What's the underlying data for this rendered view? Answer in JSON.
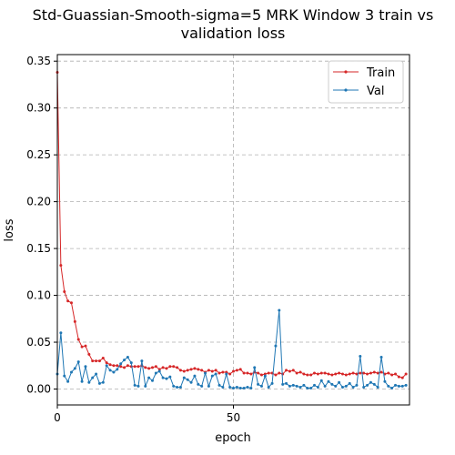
{
  "chart_data": {
    "type": "line",
    "title_lines": [
      "Std-Guassian-Smooth-sigma=5 MRK Window 3 train vs",
      "validation loss"
    ],
    "xlabel": "epoch",
    "ylabel": "loss",
    "xlim": [
      0,
      100
    ],
    "ylim": [
      -0.017,
      0.357
    ],
    "xticks": [
      0,
      50
    ],
    "yticks": [
      0.0,
      0.05,
      0.1,
      0.15,
      0.2,
      0.25,
      0.3,
      0.35
    ],
    "ytick_labels": [
      "0.00",
      "0.05",
      "0.10",
      "0.15",
      "0.20",
      "0.25",
      "0.30",
      "0.35"
    ],
    "grid": true,
    "legend_position": "top-right",
    "series": [
      {
        "name": "Train",
        "color": "#d62728",
        "x": [
          0,
          1,
          2,
          3,
          4,
          5,
          6,
          7,
          8,
          9,
          10,
          11,
          12,
          13,
          14,
          15,
          16,
          17,
          18,
          19,
          20,
          21,
          22,
          23,
          24,
          25,
          26,
          27,
          28,
          29,
          30,
          31,
          32,
          33,
          34,
          35,
          36,
          37,
          38,
          39,
          40,
          41,
          42,
          43,
          44,
          45,
          46,
          47,
          48,
          49,
          50,
          51,
          52,
          53,
          54,
          55,
          56,
          57,
          58,
          59,
          60,
          61,
          62,
          63,
          64,
          65,
          66,
          67,
          68,
          69,
          70,
          71,
          72,
          73,
          74,
          75,
          76,
          77,
          78,
          79,
          80,
          81,
          82,
          83,
          84,
          85,
          86,
          87,
          88,
          89,
          90,
          91,
          92,
          93,
          94,
          95,
          96,
          97,
          98,
          99
        ],
        "values": [
          0.338,
          0.132,
          0.104,
          0.094,
          0.092,
          0.072,
          0.053,
          0.045,
          0.046,
          0.037,
          0.03,
          0.03,
          0.03,
          0.033,
          0.028,
          0.026,
          0.025,
          0.025,
          0.024,
          0.023,
          0.025,
          0.024,
          0.024,
          0.024,
          0.025,
          0.023,
          0.022,
          0.023,
          0.024,
          0.021,
          0.023,
          0.022,
          0.024,
          0.024,
          0.023,
          0.02,
          0.019,
          0.02,
          0.021,
          0.022,
          0.021,
          0.02,
          0.018,
          0.02,
          0.019,
          0.02,
          0.017,
          0.018,
          0.018,
          0.016,
          0.019,
          0.02,
          0.021,
          0.017,
          0.017,
          0.016,
          0.018,
          0.017,
          0.015,
          0.016,
          0.017,
          0.017,
          0.015,
          0.017,
          0.016,
          0.02,
          0.019,
          0.02,
          0.017,
          0.018,
          0.016,
          0.015,
          0.015,
          0.017,
          0.016,
          0.017,
          0.017,
          0.016,
          0.015,
          0.016,
          0.017,
          0.016,
          0.015,
          0.016,
          0.017,
          0.016,
          0.017,
          0.017,
          0.016,
          0.017,
          0.018,
          0.017,
          0.018,
          0.016,
          0.017,
          0.015,
          0.016,
          0.013,
          0.012,
          0.016
        ]
      },
      {
        "name": "Val",
        "color": "#1f77b4",
        "x": [
          0,
          1,
          2,
          3,
          4,
          5,
          6,
          7,
          8,
          9,
          10,
          11,
          12,
          13,
          14,
          15,
          16,
          17,
          18,
          19,
          20,
          21,
          22,
          23,
          24,
          25,
          26,
          27,
          28,
          29,
          30,
          31,
          32,
          33,
          34,
          35,
          36,
          37,
          38,
          39,
          40,
          41,
          42,
          43,
          44,
          45,
          46,
          47,
          48,
          49,
          50,
          51,
          52,
          53,
          54,
          55,
          56,
          57,
          58,
          59,
          60,
          61,
          62,
          63,
          64,
          65,
          66,
          67,
          68,
          69,
          70,
          71,
          72,
          73,
          74,
          75,
          76,
          77,
          78,
          79,
          80,
          81,
          82,
          83,
          84,
          85,
          86,
          87,
          88,
          89,
          90,
          91,
          92,
          93,
          94,
          95,
          96,
          97,
          98,
          99
        ],
        "values": [
          0.016,
          0.06,
          0.014,
          0.008,
          0.018,
          0.022,
          0.029,
          0.008,
          0.024,
          0.007,
          0.012,
          0.016,
          0.006,
          0.007,
          0.025,
          0.02,
          0.018,
          0.021,
          0.027,
          0.031,
          0.034,
          0.028,
          0.004,
          0.003,
          0.03,
          0.003,
          0.012,
          0.009,
          0.017,
          0.019,
          0.012,
          0.011,
          0.013,
          0.003,
          0.002,
          0.002,
          0.012,
          0.01,
          0.007,
          0.014,
          0.005,
          0.003,
          0.017,
          0.003,
          0.014,
          0.016,
          0.004,
          0.002,
          0.016,
          0.002,
          0.001,
          0.002,
          0.001,
          0.001,
          0.002,
          0.001,
          0.023,
          0.005,
          0.003,
          0.014,
          0.002,
          0.006,
          0.046,
          0.084,
          0.005,
          0.006,
          0.003,
          0.004,
          0.003,
          0.002,
          0.004,
          0.001,
          0.001,
          0.004,
          0.002,
          0.009,
          0.003,
          0.008,
          0.005,
          0.003,
          0.007,
          0.002,
          0.003,
          0.006,
          0.002,
          0.004,
          0.035,
          0.002,
          0.004,
          0.007,
          0.005,
          0.002,
          0.034,
          0.008,
          0.003,
          0.001,
          0.004,
          0.003,
          0.003,
          0.004
        ]
      }
    ]
  }
}
